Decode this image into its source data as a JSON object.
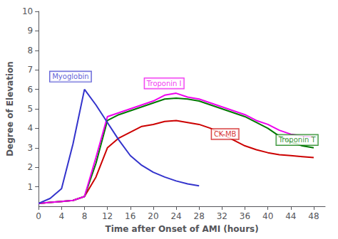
{
  "chart_data": {
    "type": "line",
    "xlabel": "Time after Onset of AMI (hours)",
    "ylabel": "Degree of Elevation",
    "xlim": [
      0,
      50
    ],
    "ylim": [
      0,
      10
    ],
    "xticks": [
      0,
      4,
      8,
      12,
      16,
      20,
      24,
      28,
      32,
      36,
      40,
      44,
      48
    ],
    "yticks": [
      1,
      2,
      3,
      4,
      5,
      6,
      7,
      8,
      9,
      10
    ],
    "grid": false,
    "series": [
      {
        "color": "#cc0000",
        "x": [
          0,
          2,
          4,
          6,
          8,
          10,
          12,
          14,
          16,
          18,
          20,
          22,
          24,
          26,
          28,
          30,
          32,
          34,
          36,
          38,
          40,
          42,
          44,
          46,
          48
        ],
        "values": [
          0.15,
          0.2,
          0.25,
          0.3,
          0.5,
          1.5,
          3.0,
          3.5,
          3.8,
          4.1,
          4.2,
          4.35,
          4.4,
          4.3,
          4.2,
          4.0,
          3.7,
          3.4,
          3.1,
          2.9,
          2.75,
          2.65,
          2.6,
          2.55,
          2.5
        ]
      },
      {
        "color": "#007700",
        "x": [
          0,
          2,
          4,
          6,
          8,
          10,
          12,
          14,
          16,
          18,
          20,
          22,
          24,
          26,
          28,
          30,
          32,
          34,
          36,
          38,
          40,
          42,
          44,
          46,
          48
        ],
        "values": [
          0.15,
          0.2,
          0.25,
          0.3,
          0.5,
          2.2,
          4.4,
          4.7,
          4.9,
          5.1,
          5.3,
          5.5,
          5.55,
          5.5,
          5.4,
          5.2,
          5.0,
          4.8,
          4.6,
          4.3,
          4.0,
          3.6,
          3.3,
          3.1,
          3.0
        ]
      },
      {
        "color": "#ee00ee",
        "x": [
          0,
          2,
          4,
          6,
          8,
          10,
          12,
          14,
          16,
          18,
          20,
          22,
          24,
          26,
          28,
          30,
          32,
          34,
          36,
          38,
          40,
          42,
          44,
          46,
          48
        ],
        "values": [
          0.15,
          0.2,
          0.25,
          0.3,
          0.5,
          2.5,
          4.6,
          4.8,
          5.0,
          5.2,
          5.4,
          5.7,
          5.8,
          5.6,
          5.5,
          5.3,
          5.1,
          4.9,
          4.7,
          4.4,
          4.2,
          3.9,
          3.7,
          3.6,
          3.55
        ]
      },
      {
        "color": "#3333cc",
        "x": [
          0,
          2,
          4,
          6,
          8,
          10,
          12,
          14,
          16,
          18,
          20,
          22,
          24,
          26,
          28
        ],
        "values": [
          0.15,
          0.4,
          0.9,
          3.2,
          6.0,
          5.2,
          4.3,
          3.4,
          2.6,
          2.1,
          1.75,
          1.5,
          1.3,
          1.15,
          1.05
        ]
      }
    ],
    "annotations": [
      {
        "text": "Myoglobin",
        "x": 2.0,
        "y": 6.4,
        "color": "#3333cc"
      },
      {
        "text": "Troponin I",
        "x": 18.5,
        "y": 6.05,
        "color": "#ee00ee"
      },
      {
        "text": "Troponin T",
        "x": 41.5,
        "y": 3.15,
        "color": "#007700"
      },
      {
        "text": "CK-MB",
        "x": 30.2,
        "y": 3.45,
        "color": "#cc0000"
      }
    ]
  }
}
